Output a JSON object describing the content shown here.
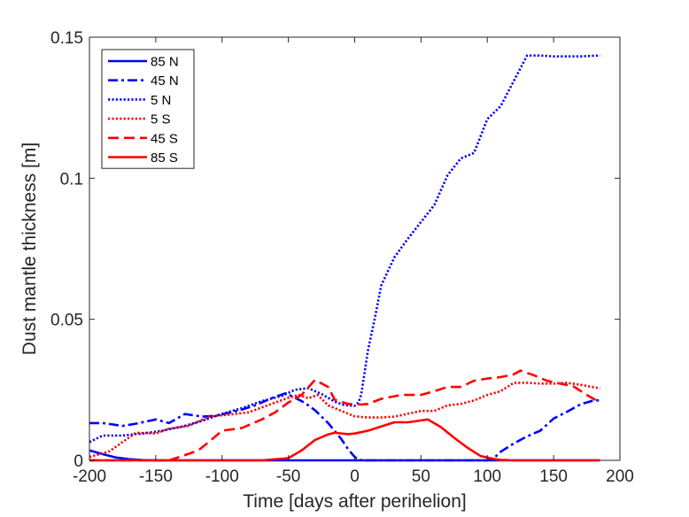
{
  "chart_data": {
    "type": "line",
    "title": "",
    "xlabel": "Time [days after perihelion]",
    "ylabel": "Dust mantle thickness [m]",
    "xlim": [
      -200,
      200
    ],
    "ylim": [
      0,
      0.15
    ],
    "xticks": [
      -200,
      -150,
      -100,
      -50,
      0,
      50,
      100,
      150,
      200
    ],
    "yticks": [
      0,
      0.05,
      0.1,
      0.15
    ],
    "ytick_labels": [
      "0",
      "0.05",
      "0.1",
      "0.15"
    ],
    "grid": false,
    "legend_position": "top-left",
    "series": [
      {
        "name": "85 N",
        "color": "#0000ff",
        "style": "solid",
        "x": [
          -200,
          -190,
          -180,
          -170,
          -160,
          -150,
          185
        ],
        "y": [
          0.0035,
          0.0022,
          0.001,
          0.0004,
          0.0001,
          0,
          0
        ]
      },
      {
        "name": "45 N",
        "color": "#0000ff",
        "style": "dashdot",
        "x": [
          -200,
          -190,
          -175,
          -165,
          -150,
          -140,
          -128,
          -115,
          -105,
          -95,
          -85,
          -75,
          -62,
          -52,
          -45,
          -38,
          -30,
          -20,
          -10,
          -5,
          0,
          3,
          6,
          100,
          105,
          110,
          120,
          130,
          140,
          150,
          160,
          170,
          180,
          185
        ],
        "y": [
          0.0132,
          0.0132,
          0.0122,
          0.013,
          0.0145,
          0.0132,
          0.0164,
          0.0155,
          0.0158,
          0.0168,
          0.018,
          0.0195,
          0.0222,
          0.0238,
          0.0222,
          0.0205,
          0.0178,
          0.0132,
          0.0075,
          0.004,
          0.0012,
          0.0003,
          0,
          0,
          0.0008,
          0.003,
          0.006,
          0.0085,
          0.0105,
          0.0148,
          0.0172,
          0.0198,
          0.0212,
          0.0213
        ]
      },
      {
        "name": "5 N",
        "color": "#0000ff",
        "style": "dotted",
        "x": [
          -200,
          -190,
          -175,
          -160,
          -145,
          -130,
          -115,
          -100,
          -85,
          -70,
          -55,
          -45,
          -35,
          -25,
          -15,
          -8,
          0,
          3,
          5,
          10,
          15,
          20,
          30,
          40,
          50,
          60,
          70,
          80,
          90,
          100,
          110,
          120,
          130,
          140,
          150,
          160,
          170,
          180,
          185
        ],
        "y": [
          0.0065,
          0.0088,
          0.0088,
          0.0095,
          0.0105,
          0.012,
          0.014,
          0.0165,
          0.0185,
          0.021,
          0.0228,
          0.025,
          0.0256,
          0.0235,
          0.0208,
          0.0196,
          0.0193,
          0.0206,
          0.0235,
          0.039,
          0.05,
          0.062,
          0.072,
          0.0785,
          0.0845,
          0.0905,
          0.101,
          0.107,
          0.109,
          0.121,
          0.1255,
          0.1345,
          0.1435,
          0.1435,
          0.1432,
          0.1432,
          0.1432,
          0.1434,
          0.1435
        ]
      },
      {
        "name": "5 S",
        "color": "#ff0000",
        "style": "dotted",
        "x": [
          -200,
          -185,
          -165,
          -150,
          -140,
          -125,
          -110,
          -95,
          -80,
          -65,
          -50,
          -42,
          -35,
          -28,
          -20,
          -10,
          0,
          10,
          20,
          30,
          40,
          50,
          60,
          70,
          80,
          90,
          100,
          110,
          120,
          130,
          140,
          150,
          160,
          170,
          185
        ],
        "y": [
          0.0012,
          0.0032,
          0.0098,
          0.0095,
          0.0112,
          0.0122,
          0.0155,
          0.0162,
          0.017,
          0.0196,
          0.0222,
          0.0232,
          0.022,
          0.0232,
          0.0195,
          0.0175,
          0.0156,
          0.0152,
          0.0152,
          0.0155,
          0.0165,
          0.0175,
          0.0175,
          0.0195,
          0.02,
          0.0212,
          0.0232,
          0.0245,
          0.0275,
          0.0275,
          0.0272,
          0.0272,
          0.0275,
          0.0268,
          0.0255
        ]
      },
      {
        "name": "45 S",
        "color": "#ff0000",
        "style": "dashed",
        "x": [
          -200,
          -170,
          -140,
          -130,
          -118,
          -110,
          -100,
          -85,
          -70,
          -60,
          -50,
          -40,
          -30,
          -20,
          -15,
          -5,
          5,
          10,
          20,
          35,
          50,
          60,
          70,
          80,
          90,
          100,
          110,
          120,
          125,
          135,
          145,
          155,
          165,
          175,
          185
        ],
        "y": [
          0,
          0,
          0,
          0.0015,
          0.0035,
          0.0065,
          0.0105,
          0.0115,
          0.0145,
          0.017,
          0.0205,
          0.0232,
          0.0285,
          0.026,
          0.0215,
          0.02,
          0.0198,
          0.02,
          0.0218,
          0.0232,
          0.0232,
          0.0245,
          0.026,
          0.026,
          0.0282,
          0.029,
          0.0295,
          0.0305,
          0.0318,
          0.0302,
          0.0282,
          0.0272,
          0.0262,
          0.0232,
          0.0205
        ]
      },
      {
        "name": "85 S",
        "color": "#ff0000",
        "style": "solid",
        "x": [
          -200,
          -70,
          -50,
          -40,
          -30,
          -20,
          -15,
          -5,
          0,
          10,
          20,
          30,
          40,
          45,
          55,
          65,
          75,
          85,
          95,
          105,
          110,
          115,
          120,
          185
        ],
        "y": [
          0,
          0,
          0.0008,
          0.0035,
          0.0072,
          0.0092,
          0.0098,
          0.0093,
          0.0095,
          0.0105,
          0.012,
          0.0135,
          0.0135,
          0.0138,
          0.0145,
          0.0118,
          0.008,
          0.0045,
          0.0015,
          0.0005,
          0.0002,
          0.0001,
          0,
          0
        ]
      }
    ]
  }
}
